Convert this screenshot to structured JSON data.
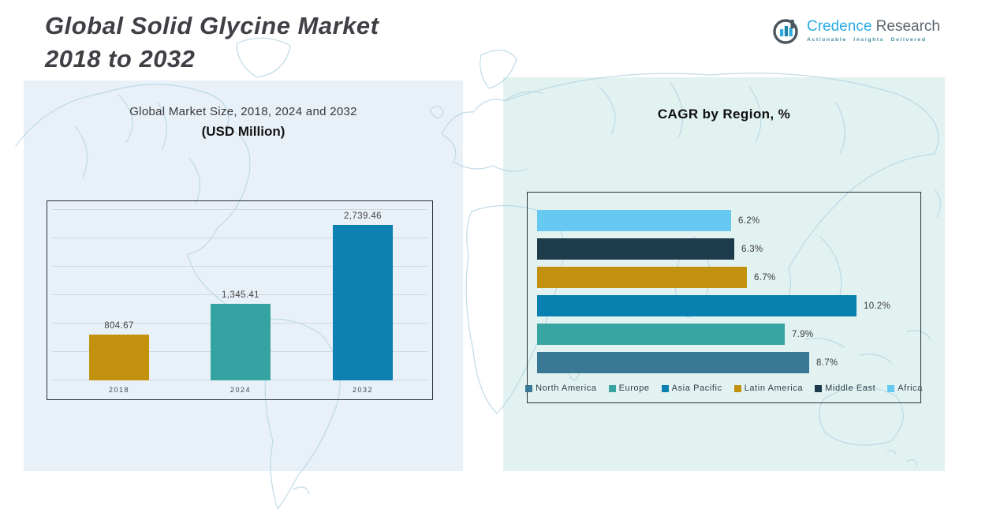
{
  "header": {
    "title_line1": "Global Solid Glycine Market",
    "title_line2": "2018 to 2032",
    "logo": {
      "brand_primary": "Credence",
      "brand_secondary": "Research",
      "tagline": "Actionable Insights Delivered",
      "icon": "bar-chart-in-circle-icon",
      "brand_primary_color": "#29abe2",
      "brand_secondary_color": "#5b6670"
    }
  },
  "left_chart": {
    "title": "Global Market Size, 2018, 2024 and 2032",
    "subtitle": "(USD Million)"
  },
  "right_chart": {
    "title": "CAGR by Region, %"
  },
  "chart_data": [
    {
      "type": "bar",
      "orientation": "vertical",
      "title": "Global Market Size, 2018, 2024 and 2032 (USD Million)",
      "categories": [
        "2018",
        "2024",
        "2032"
      ],
      "values": [
        804.67,
        1345.41,
        2739.46
      ],
      "value_labels": [
        "804.67",
        "1,345.41",
        "2,739.46"
      ],
      "bar_colors": [
        "#c2920e",
        "#35a3a2",
        "#0c81b2"
      ],
      "ylim": [
        0,
        3000
      ],
      "gridline_step": 500,
      "grid": true,
      "legend_position": "none"
    },
    {
      "type": "bar",
      "orientation": "horizontal",
      "title": "CAGR by Region, %",
      "rows_top_to_bottom": [
        {
          "region": "Africa",
          "value": 6.2,
          "label": "6.2%",
          "color": "#67c9f2"
        },
        {
          "region": "Middle East",
          "value": 6.3,
          "label": "6.3%",
          "color": "#1e3b4b"
        },
        {
          "region": "Latin America",
          "value": 6.7,
          "label": "6.7%",
          "color": "#c2920e"
        },
        {
          "region": "Asia Pacific",
          "value": 10.2,
          "label": "10.2%",
          "color": "#0a80b0"
        },
        {
          "region": "Europe",
          "value": 7.9,
          "label": "7.9%",
          "color": "#38a5a2"
        },
        {
          "region": "North America",
          "value": 8.7,
          "label": "8.7%",
          "color": "#3a7895"
        }
      ],
      "xlim": [
        0,
        10.2
      ],
      "grid": false,
      "legend_position": "bottom",
      "legend": [
        {
          "label": "North America",
          "color": "#3a7895"
        },
        {
          "label": "Europe",
          "color": "#38a5a2"
        },
        {
          "label": "Asia Pacific",
          "color": "#0a80b0"
        },
        {
          "label": "Latin America",
          "color": "#c2920e"
        },
        {
          "label": "Middle East",
          "color": "#1e3b4b"
        },
        {
          "label": "Africa",
          "color": "#67c9f2"
        }
      ]
    }
  ],
  "colors": {
    "panel_left": "#e9f1f8",
    "panel_right": "#e2f2f1",
    "map_line": "#b5d5e2",
    "chart_border": "#2b2f33",
    "gridline": "#cfd8dd",
    "title_text": "#3e4045"
  }
}
